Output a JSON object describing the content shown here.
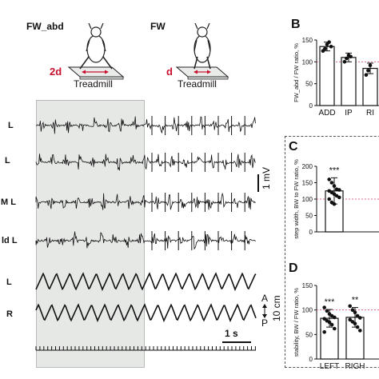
{
  "left_panel": {
    "conditions": [
      "FW_abd",
      "FW"
    ],
    "treadmill_label": "Treadmill",
    "widths": [
      "2d",
      "d"
    ],
    "channel_labels": [
      "L",
      "L",
      "M L",
      "ld L",
      "L",
      "R"
    ],
    "scale_emg": "1 mV",
    "scale_distance": "10 cm",
    "scale_time": "1 s",
    "axis_anterior": "A",
    "axis_posterior": "P"
  },
  "colors": {
    "accent": "#c8102e",
    "highlight": "#e6e8e6",
    "bar": "#ffffff",
    "line": "#111111",
    "reference": "#d46a8a"
  },
  "chart_data": [
    {
      "panel": "B",
      "type": "bar",
      "ylabel": "FW_abd / FW ratio, %",
      "categories": [
        "ADD",
        "IP",
        "RI"
      ],
      "values": [
        135,
        110,
        85
      ],
      "error": [
        10,
        10,
        12
      ],
      "points": [
        [
          125,
          130,
          140,
          145,
          135
        ],
        [
          100,
          108,
          115,
          112
        ],
        [
          70,
          80,
          92
        ]
      ],
      "ylim": [
        0,
        150
      ],
      "yticks": [
        0,
        50,
        100,
        150
      ],
      "reference": 100
    },
    {
      "panel": "C",
      "type": "bar",
      "ylabel": "step width, BW to FW ratio, %",
      "categories": [
        ""
      ],
      "values": [
        125
      ],
      "error": [
        40
      ],
      "points": [
        [
          160,
          150,
          140,
          130,
          128,
          125,
          120,
          115,
          110,
          105,
          100,
          90,
          85
        ]
      ],
      "significance": [
        "***"
      ],
      "ylim": [
        0,
        200
      ],
      "yticks": [
        0,
        50,
        100,
        150,
        200
      ],
      "reference": 100
    },
    {
      "panel": "D",
      "type": "bar",
      "ylabel": "stability, BW / FW ratio, %",
      "categories": [
        "LEFT",
        "RIGH"
      ],
      "values": [
        83,
        85
      ],
      "error": [
        18,
        20
      ],
      "points": [
        [
          105,
          98,
          92,
          88,
          85,
          82,
          78,
          75,
          70,
          62,
          55
        ],
        [
          108,
          100,
          95,
          88,
          84,
          80,
          76,
          72,
          65,
          58
        ]
      ],
      "significance": [
        "***",
        "**"
      ],
      "ylim": [
        0,
        150
      ],
      "yticks": [
        0,
        50,
        100,
        150
      ],
      "reference": 100
    }
  ],
  "panel_letters": [
    "B",
    "C",
    "D"
  ]
}
